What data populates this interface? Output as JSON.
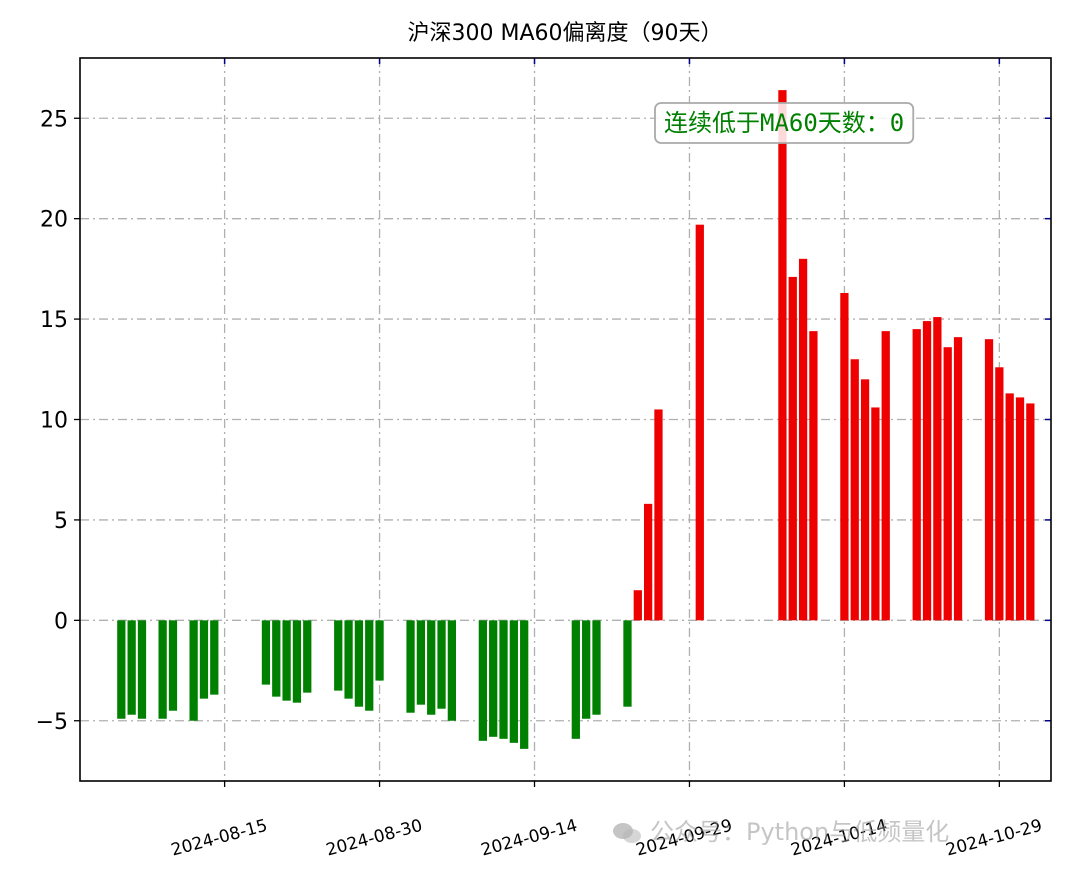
{
  "chart_data": {
    "type": "bar",
    "title": "沪深300 MA60偏离度（90天）",
    "xlabel": "",
    "ylabel": "",
    "ylim": [
      -8,
      28
    ],
    "yticks": [
      -5,
      0,
      5,
      10,
      15,
      20,
      25
    ],
    "xlim": [
      "2024-08-01",
      "2024-11-03"
    ],
    "xticks": [
      "2024-08-15",
      "2024-08-30",
      "2024-09-14",
      "2024-09-29",
      "2024-10-14",
      "2024-10-29"
    ],
    "grid": true,
    "positive_color": "#ee0000",
    "negative_color": "#008000",
    "annotation": {
      "text": "连续低于MA60天数：0",
      "color": "#008000",
      "position": "top-right"
    },
    "data": [
      {
        "x": "2024-08-05",
        "y": -4.9
      },
      {
        "x": "2024-08-06",
        "y": -4.7
      },
      {
        "x": "2024-08-07",
        "y": -4.9
      },
      {
        "x": "2024-08-09",
        "y": -4.9
      },
      {
        "x": "2024-08-10",
        "y": -4.5
      },
      {
        "x": "2024-08-12",
        "y": -5.0
      },
      {
        "x": "2024-08-13",
        "y": -3.9
      },
      {
        "x": "2024-08-14",
        "y": -3.7
      },
      {
        "x": "2024-08-19",
        "y": -3.2
      },
      {
        "x": "2024-08-20",
        "y": -3.8
      },
      {
        "x": "2024-08-21",
        "y": -4.0
      },
      {
        "x": "2024-08-22",
        "y": -4.1
      },
      {
        "x": "2024-08-23",
        "y": -3.6
      },
      {
        "x": "2024-08-26",
        "y": -3.5
      },
      {
        "x": "2024-08-27",
        "y": -3.9
      },
      {
        "x": "2024-08-28",
        "y": -4.3
      },
      {
        "x": "2024-08-29",
        "y": -4.5
      },
      {
        "x": "2024-08-30",
        "y": -3.0
      },
      {
        "x": "2024-09-02",
        "y": -4.6
      },
      {
        "x": "2024-09-03",
        "y": -4.2
      },
      {
        "x": "2024-09-04",
        "y": -4.7
      },
      {
        "x": "2024-09-05",
        "y": -4.4
      },
      {
        "x": "2024-09-06",
        "y": -5.0
      },
      {
        "x": "2024-09-09",
        "y": -6.0
      },
      {
        "x": "2024-09-10",
        "y": -5.8
      },
      {
        "x": "2024-09-11",
        "y": -5.9
      },
      {
        "x": "2024-09-12",
        "y": -6.1
      },
      {
        "x": "2024-09-13",
        "y": -6.4
      },
      {
        "x": "2024-09-18",
        "y": -5.9
      },
      {
        "x": "2024-09-19",
        "y": -4.9
      },
      {
        "x": "2024-09-20",
        "y": -4.7
      },
      {
        "x": "2024-09-23",
        "y": -4.3
      },
      {
        "x": "2024-09-24",
        "y": 1.5
      },
      {
        "x": "2024-09-25",
        "y": 5.8
      },
      {
        "x": "2024-09-26",
        "y": 10.5
      },
      {
        "x": "2024-09-30",
        "y": 19.7
      },
      {
        "x": "2024-10-08",
        "y": 26.4
      },
      {
        "x": "2024-10-09",
        "y": 17.1
      },
      {
        "x": "2024-10-10",
        "y": 18.0
      },
      {
        "x": "2024-10-11",
        "y": 14.4
      },
      {
        "x": "2024-10-14",
        "y": 16.3
      },
      {
        "x": "2024-10-15",
        "y": 13.0
      },
      {
        "x": "2024-10-16",
        "y": 12.0
      },
      {
        "x": "2024-10-17",
        "y": 10.6
      },
      {
        "x": "2024-10-18",
        "y": 14.4
      },
      {
        "x": "2024-10-21",
        "y": 14.5
      },
      {
        "x": "2024-10-22",
        "y": 14.9
      },
      {
        "x": "2024-10-23",
        "y": 15.1
      },
      {
        "x": "2024-10-24",
        "y": 13.6
      },
      {
        "x": "2024-10-25",
        "y": 14.1
      },
      {
        "x": "2024-10-28",
        "y": 14.0
      },
      {
        "x": "2024-10-29",
        "y": 12.6
      },
      {
        "x": "2024-10-30",
        "y": 11.3
      },
      {
        "x": "2024-10-31",
        "y": 11.1
      },
      {
        "x": "2024-11-01",
        "y": 10.8
      }
    ]
  },
  "watermark": "公众号：Python与低频量化"
}
